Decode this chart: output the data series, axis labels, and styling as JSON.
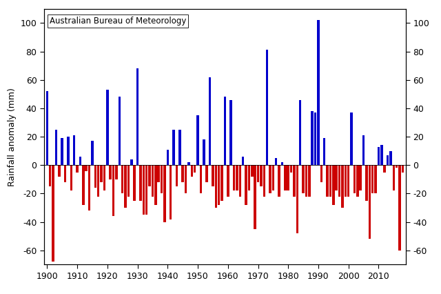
{
  "title": "Australian Bureau of Meteorology",
  "ylabel": "Rainfall anomaly (mm)",
  "xlim": [
    1899.0,
    2019.0
  ],
  "ylim": [
    -70,
    110
  ],
  "yticks": [
    -60,
    -40,
    -20,
    0,
    20,
    40,
    60,
    80,
    100
  ],
  "xticks": [
    1900,
    1910,
    1920,
    1930,
    1940,
    1950,
    1960,
    1970,
    1980,
    1990,
    2000,
    2010
  ],
  "background_color": "#ffffff",
  "bar_positive_color": "#0000cc",
  "bar_negative_color": "#cc0000",
  "values": {
    "1900": 52,
    "1901": -15,
    "1902": -68,
    "1903": 25,
    "1904": -8,
    "1905": 19,
    "1906": -12,
    "1907": 20,
    "1908": -18,
    "1909": 21,
    "1910": -5,
    "1911": 6,
    "1912": -28,
    "1913": -4,
    "1914": -32,
    "1915": 17,
    "1916": -16,
    "1917": -22,
    "1918": -12,
    "1919": -18,
    "1920": 53,
    "1921": -10,
    "1922": -36,
    "1923": -10,
    "1924": 48,
    "1925": -20,
    "1926": -30,
    "1927": -22,
    "1928": 4,
    "1929": -25,
    "1930": 68,
    "1931": -25,
    "1932": -35,
    "1933": -35,
    "1934": -15,
    "1935": -22,
    "1936": -28,
    "1937": -12,
    "1938": -20,
    "1939": -40,
    "1940": 11,
    "1941": -38,
    "1942": 25,
    "1943": -15,
    "1944": 25,
    "1945": -12,
    "1946": -20,
    "1947": 2,
    "1948": -8,
    "1949": -5,
    "1950": 35,
    "1951": -20,
    "1952": 18,
    "1953": -12,
    "1954": 62,
    "1955": -15,
    "1956": -30,
    "1957": -28,
    "1958": -25,
    "1959": 48,
    "1960": -22,
    "1961": 46,
    "1962": -18,
    "1963": -18,
    "1964": -22,
    "1965": 6,
    "1966": -28,
    "1967": -18,
    "1968": -8,
    "1969": -45,
    "1970": -12,
    "1971": -15,
    "1972": -22,
    "1973": 81,
    "1974": -20,
    "1975": -18,
    "1976": 5,
    "1977": -22,
    "1978": 2,
    "1979": -18,
    "1980": -18,
    "1981": -5,
    "1982": -22,
    "1983": -48,
    "1984": 46,
    "1985": -20,
    "1986": -22,
    "1987": -22,
    "1988": 38,
    "1989": 37,
    "1990": 102,
    "1991": -12,
    "1992": 19,
    "1993": -22,
    "1994": -22,
    "1995": -28,
    "1996": -18,
    "1997": -22,
    "1998": -30,
    "1999": -22,
    "2000": -22,
    "2001": 37,
    "2002": -20,
    "2003": -22,
    "2004": -18,
    "2005": 21,
    "2006": -25,
    "2007": -52,
    "2008": -20,
    "2009": -20,
    "2010": 13,
    "2011": 14,
    "2012": -5,
    "2013": 7,
    "2014": 10,
    "2015": -18,
    "2016": -2,
    "2017": -60,
    "2018": -5
  },
  "figsize": [
    6.4,
    4.26
  ],
  "dpi": 100,
  "title_fontsize": 8.5,
  "axis_fontsize": 9,
  "tick_fontsize": 9
}
